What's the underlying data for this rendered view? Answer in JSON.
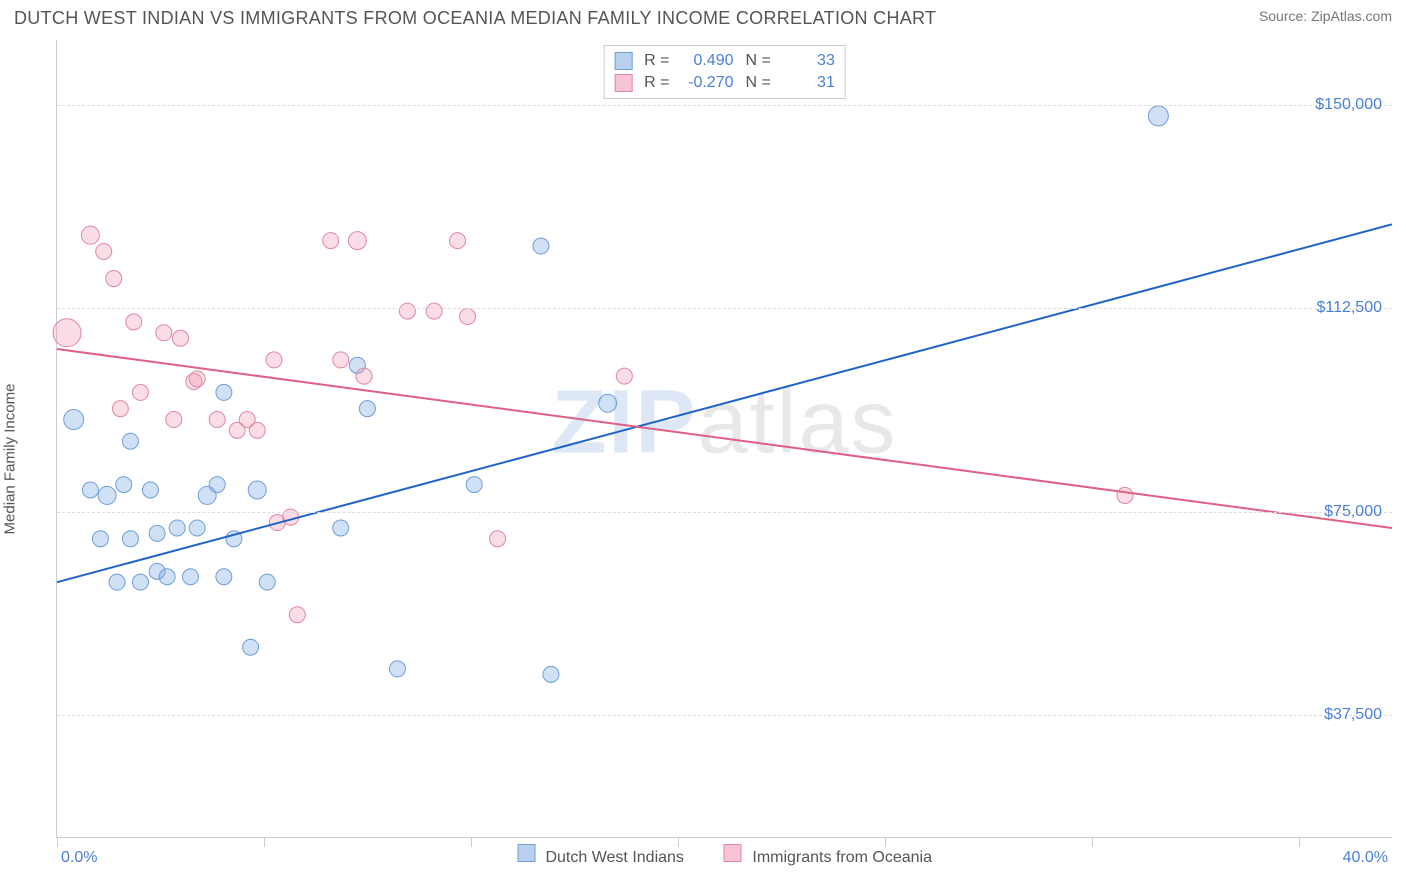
{
  "header": {
    "title": "DUTCH WEST INDIAN VS IMMIGRANTS FROM OCEANIA MEDIAN FAMILY INCOME CORRELATION CHART",
    "source": "Source: ZipAtlas.com"
  },
  "chart": {
    "type": "scatter",
    "y_axis_label": "Median Family Income",
    "xlim": [
      0,
      40
    ],
    "ylim": [
      15000,
      162000
    ],
    "x_tick_positions_pct": [
      0,
      15.5,
      31,
      46.5,
      62,
      77.5,
      93
    ],
    "x_range_min_label": "0.0%",
    "x_range_max_label": "40.0%",
    "y_ticks": [
      {
        "value": 37500,
        "label": "$37,500"
      },
      {
        "value": 75000,
        "label": "$75,000"
      },
      {
        "value": 112500,
        "label": "$112,500"
      },
      {
        "value": 150000,
        "label": "$150,000"
      }
    ],
    "grid_color": "#dddddd",
    "background_color": "#ffffff",
    "axis_color": "#cccccc",
    "tick_label_color": "#4a7fd8",
    "series": [
      {
        "name": "Dutch West Indians",
        "fill": "rgba(120,165,225,0.35)",
        "stroke": "#6f9fd8",
        "line_color": "#1f63c9",
        "swatch_fill": "#b9d1ef",
        "swatch_border": "#6f9fd8",
        "R": "0.490",
        "N": "33",
        "regression": {
          "x1": 0,
          "y1": 62000,
          "x2": 40,
          "y2": 128000
        },
        "points": [
          {
            "x": 0.5,
            "y": 92000,
            "r": 10
          },
          {
            "x": 1.0,
            "y": 79000,
            "r": 8
          },
          {
            "x": 1.3,
            "y": 70000,
            "r": 8
          },
          {
            "x": 1.5,
            "y": 78000,
            "r": 9
          },
          {
            "x": 1.8,
            "y": 62000,
            "r": 8
          },
          {
            "x": 2.0,
            "y": 80000,
            "r": 8
          },
          {
            "x": 2.2,
            "y": 70000,
            "r": 8
          },
          {
            "x": 2.2,
            "y": 88000,
            "r": 8
          },
          {
            "x": 2.5,
            "y": 62000,
            "r": 8
          },
          {
            "x": 2.8,
            "y": 79000,
            "r": 8
          },
          {
            "x": 3.0,
            "y": 64000,
            "r": 8
          },
          {
            "x": 3.0,
            "y": 71000,
            "r": 8
          },
          {
            "x": 3.3,
            "y": 63000,
            "r": 8
          },
          {
            "x": 3.6,
            "y": 72000,
            "r": 8
          },
          {
            "x": 4.0,
            "y": 63000,
            "r": 8
          },
          {
            "x": 4.2,
            "y": 72000,
            "r": 8
          },
          {
            "x": 4.5,
            "y": 78000,
            "r": 9
          },
          {
            "x": 4.8,
            "y": 80000,
            "r": 8
          },
          {
            "x": 5.0,
            "y": 63000,
            "r": 8
          },
          {
            "x": 5.0,
            "y": 97000,
            "r": 8
          },
          {
            "x": 5.3,
            "y": 70000,
            "r": 8
          },
          {
            "x": 5.8,
            "y": 50000,
            "r": 8
          },
          {
            "x": 6.0,
            "y": 79000,
            "r": 9
          },
          {
            "x": 6.3,
            "y": 62000,
            "r": 8
          },
          {
            "x": 8.5,
            "y": 72000,
            "r": 8
          },
          {
            "x": 9.0,
            "y": 102000,
            "r": 8
          },
          {
            "x": 9.3,
            "y": 94000,
            "r": 8
          },
          {
            "x": 10.2,
            "y": 46000,
            "r": 8
          },
          {
            "x": 12.5,
            "y": 80000,
            "r": 8
          },
          {
            "x": 14.5,
            "y": 124000,
            "r": 8
          },
          {
            "x": 14.8,
            "y": 45000,
            "r": 8
          },
          {
            "x": 16.5,
            "y": 95000,
            "r": 9
          },
          {
            "x": 33.0,
            "y": 148000,
            "r": 10
          }
        ]
      },
      {
        "name": "Immigrants from Oceania",
        "fill": "rgba(240,150,175,0.32)",
        "stroke": "#e088a0",
        "line_color": "#e05f85",
        "swatch_fill": "#f6c4d2",
        "swatch_border": "#e088a0",
        "R": "-0.270",
        "N": "31",
        "regression": {
          "x1": 0,
          "y1": 105000,
          "x2": 40,
          "y2": 72000
        },
        "points": [
          {
            "x": 0.3,
            "y": 108000,
            "r": 14
          },
          {
            "x": 1.0,
            "y": 126000,
            "r": 9
          },
          {
            "x": 1.4,
            "y": 123000,
            "r": 8
          },
          {
            "x": 1.7,
            "y": 118000,
            "r": 8
          },
          {
            "x": 1.9,
            "y": 94000,
            "r": 8
          },
          {
            "x": 2.3,
            "y": 110000,
            "r": 8
          },
          {
            "x": 2.5,
            "y": 97000,
            "r": 8
          },
          {
            "x": 3.2,
            "y": 108000,
            "r": 8
          },
          {
            "x": 3.5,
            "y": 92000,
            "r": 8
          },
          {
            "x": 3.7,
            "y": 107000,
            "r": 8
          },
          {
            "x": 4.1,
            "y": 99000,
            "r": 8
          },
          {
            "x": 4.2,
            "y": 99500,
            "r": 8
          },
          {
            "x": 4.8,
            "y": 92000,
            "r": 8
          },
          {
            "x": 5.4,
            "y": 90000,
            "r": 8
          },
          {
            "x": 5.7,
            "y": 92000,
            "r": 8
          },
          {
            "x": 6.0,
            "y": 90000,
            "r": 8
          },
          {
            "x": 6.5,
            "y": 103000,
            "r": 8
          },
          {
            "x": 6.6,
            "y": 73000,
            "r": 8
          },
          {
            "x": 7.0,
            "y": 74000,
            "r": 8
          },
          {
            "x": 7.2,
            "y": 56000,
            "r": 8
          },
          {
            "x": 8.2,
            "y": 125000,
            "r": 8
          },
          {
            "x": 8.5,
            "y": 103000,
            "r": 8
          },
          {
            "x": 9.0,
            "y": 125000,
            "r": 9
          },
          {
            "x": 9.2,
            "y": 100000,
            "r": 8
          },
          {
            "x": 10.5,
            "y": 112000,
            "r": 8
          },
          {
            "x": 11.3,
            "y": 112000,
            "r": 8
          },
          {
            "x": 12.0,
            "y": 125000,
            "r": 8
          },
          {
            "x": 12.3,
            "y": 111000,
            "r": 8
          },
          {
            "x": 13.2,
            "y": 70000,
            "r": 8
          },
          {
            "x": 17.0,
            "y": 100000,
            "r": 8
          },
          {
            "x": 32.0,
            "y": 78000,
            "r": 8
          }
        ]
      }
    ],
    "watermark": {
      "zip": "ZIP",
      "atlas": "atlas"
    },
    "bottom_legend_labels": [
      "Dutch West Indians",
      "Immigrants from Oceania"
    ],
    "legend_labels": {
      "R": "R =",
      "N": "N ="
    }
  }
}
